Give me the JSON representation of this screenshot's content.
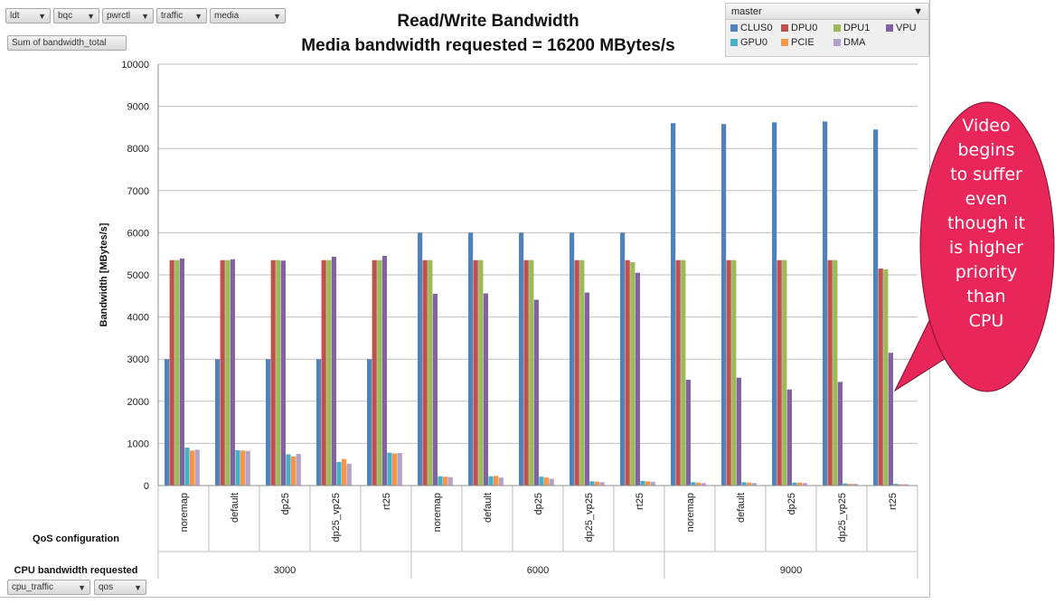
{
  "pivot": {
    "filters": [
      {
        "label": "ldt"
      },
      {
        "label": "bqc"
      },
      {
        "label": "pwrctl"
      },
      {
        "label": "traffic"
      },
      {
        "label": "media"
      }
    ],
    "values_field": "Sum of bandwidth_total",
    "row_fields": [
      {
        "label": "cpu_traffic"
      },
      {
        "label": "qos"
      }
    ],
    "legend_field": "master",
    "arrow": "▼"
  },
  "callout": {
    "lines": [
      "Video",
      "begins",
      "to suffer",
      "even",
      "though it",
      "is higher",
      "priority",
      "than",
      "CPU"
    ],
    "color": "#e8265a"
  },
  "chart_data": {
    "type": "bar",
    "title": "Read/Write Bandwidth",
    "subtitle": "Media bandwidth requested = 16200 MBytes/s",
    "ylabel": "Bandwidth [MBytes/s]",
    "xlabel_inner": "QoS configuration",
    "xlabel_outer": "CPU bandwidth requested",
    "ylim": [
      0,
      10000
    ],
    "yticks": [
      0,
      1000,
      2000,
      3000,
      4000,
      5000,
      6000,
      7000,
      8000,
      9000,
      10000
    ],
    "grid": true,
    "legend_position": "top-right",
    "groups": [
      {
        "label": "3000",
        "categories": [
          "noremap",
          "default",
          "dp25",
          "dp25_vp25",
          "rt25"
        ]
      },
      {
        "label": "6000",
        "categories": [
          "noremap",
          "default",
          "dp25",
          "dp25_vp25",
          "rt25"
        ]
      },
      {
        "label": "9000",
        "categories": [
          "noremap",
          "default",
          "dp25",
          "dp25_vp25",
          "rt25"
        ]
      }
    ],
    "series": [
      {
        "name": "CLUS0",
        "color": "#4f81bd",
        "values": [
          3000,
          3000,
          3000,
          3000,
          3000,
          6000,
          6000,
          6000,
          6000,
          6000,
          8600,
          8580,
          8620,
          8640,
          8450
        ]
      },
      {
        "name": "DPU0",
        "color": "#c0504d",
        "values": [
          5350,
          5350,
          5350,
          5350,
          5350,
          5350,
          5350,
          5350,
          5350,
          5350,
          5350,
          5350,
          5350,
          5350,
          5150
        ]
      },
      {
        "name": "DPU1",
        "color": "#9bbb59",
        "values": [
          5350,
          5350,
          5350,
          5350,
          5350,
          5350,
          5350,
          5350,
          5350,
          5300,
          5350,
          5350,
          5350,
          5350,
          5130
        ]
      },
      {
        "name": "VPU",
        "color": "#8064a2",
        "values": [
          5390,
          5370,
          5340,
          5430,
          5450,
          4550,
          4560,
          4410,
          4580,
          5050,
          2510,
          2560,
          2280,
          2460,
          3150
        ]
      },
      {
        "name": "GPU0",
        "color": "#4bacc6",
        "values": [
          900,
          840,
          740,
          560,
          780,
          220,
          220,
          210,
          100,
          110,
          80,
          80,
          70,
          50,
          40
        ]
      },
      {
        "name": "PCIE",
        "color": "#f79646",
        "values": [
          830,
          830,
          690,
          630,
          760,
          210,
          230,
          190,
          90,
          100,
          70,
          70,
          70,
          40,
          30
        ]
      },
      {
        "name": "DMA",
        "color": "#b3a2c7",
        "values": [
          850,
          820,
          750,
          520,
          770,
          200,
          190,
          160,
          80,
          90,
          60,
          60,
          60,
          40,
          30
        ]
      }
    ]
  }
}
